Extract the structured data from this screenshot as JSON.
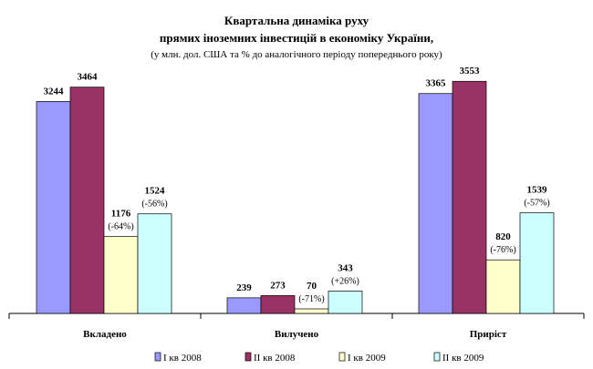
{
  "chart_data": {
    "type": "bar",
    "title": [
      "Квартальна динаміка руху",
      "прямих іноземних інвестицій  в економіку України,"
    ],
    "subtitle": "(у млн. дол. США та % до аналогічного періоду попереднього року)",
    "categories": [
      "Вкладено",
      "Вилучено",
      "Приріст"
    ],
    "series": [
      {
        "name": "І кв 2008",
        "color": "#9999ff",
        "values": [
          3244,
          239,
          3365
        ],
        "changes": [
          "",
          "",
          ""
        ]
      },
      {
        "name": "ІІ кв 2008",
        "color": "#993366",
        "values": [
          3464,
          273,
          3553
        ],
        "changes": [
          "",
          "",
          ""
        ]
      },
      {
        "name": "І кв 2009",
        "color": "#ffffcc",
        "values": [
          1176,
          70,
          820
        ],
        "changes": [
          "(-64%)",
          "(-71%)",
          "(-76%)"
        ]
      },
      {
        "name": "ІІ кв 2009",
        "color": "#ccffff",
        "values": [
          1524,
          343,
          1539
        ],
        "changes": [
          "(-56%)",
          "(+26%)",
          "(-57%)"
        ]
      }
    ],
    "ylim": [
      0,
      3900
    ],
    "grid": false,
    "legend_position": "bottom"
  }
}
